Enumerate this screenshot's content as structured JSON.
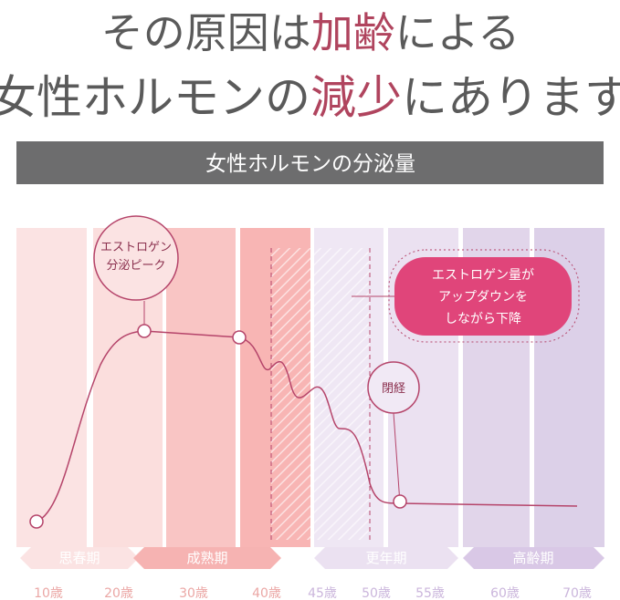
{
  "header": {
    "line1": [
      "その原因は",
      "加齢",
      "による"
    ],
    "line2": [
      "女性ホルモンの",
      "減少",
      "にあります"
    ]
  },
  "banner": "女性ホルモンの分泌量",
  "callouts": {
    "peak": [
      "エストロゲン",
      "分泌ピーク"
    ],
    "updown": [
      "エストロゲン量が",
      "アップダウンを",
      "しながら下降"
    ],
    "menopause": "閉経"
  },
  "phases": [
    "思春期",
    "成熟期",
    "更年期",
    "高齢期"
  ],
  "ages": [
    "10歳",
    "20歳",
    "30歳",
    "40歳",
    "45歳",
    "50歳",
    "55歳",
    "60歳",
    "70歳"
  ]
}
